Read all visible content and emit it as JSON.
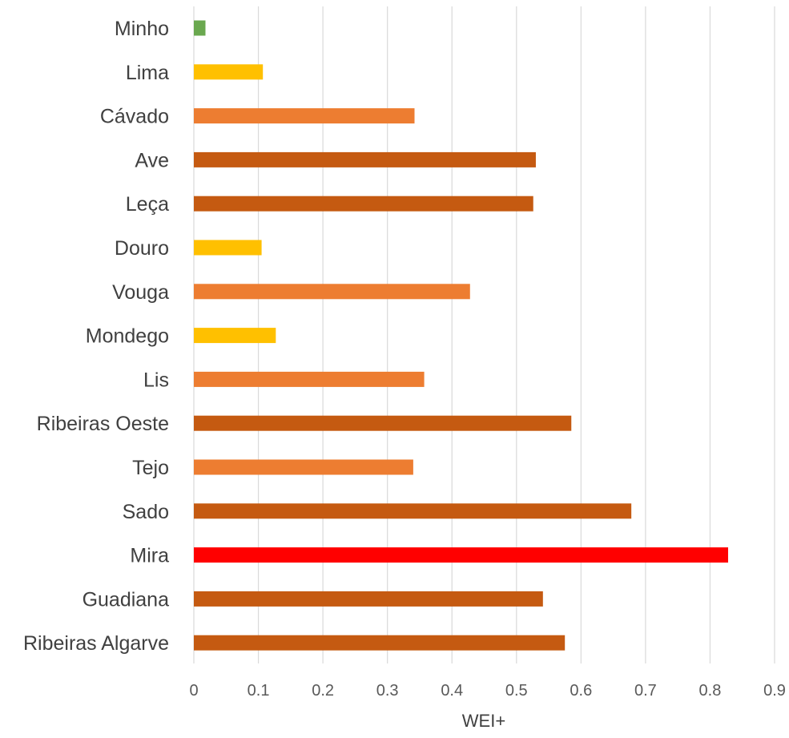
{
  "chart_data": {
    "type": "bar",
    "orientation": "horizontal",
    "title": "",
    "xlabel": "WEI+",
    "ylabel": "",
    "xlim": [
      0,
      0.9
    ],
    "x_ticks": [
      "0",
      "0.1",
      "0.2",
      "0.3",
      "0.4",
      "0.5",
      "0.6",
      "0.7",
      "0.8",
      "0.9"
    ],
    "grid": "vertical",
    "legend": "none",
    "categories": [
      "Minho",
      "Lima",
      "Cávado",
      "Ave",
      "Leça",
      "Douro",
      "Vouga",
      "Mondego",
      "Lis",
      "Ribeiras Oeste",
      "Tejo",
      "Sado",
      "Mira",
      "Guadiana",
      "Ribeiras Algarve"
    ],
    "values": [
      0.018,
      0.107,
      0.342,
      0.53,
      0.526,
      0.105,
      0.428,
      0.127,
      0.357,
      0.585,
      0.34,
      0.678,
      0.828,
      0.541,
      0.575
    ],
    "bar_colors": [
      "#6aa84f",
      "#ffc000",
      "#ed7d31",
      "#c55a11",
      "#c55a11",
      "#ffc000",
      "#ed7d31",
      "#ffc000",
      "#ed7d31",
      "#c55a11",
      "#ed7d31",
      "#c55a11",
      "#ff0000",
      "#c55a11",
      "#c55a11"
    ]
  },
  "colors": {
    "grid": "#d9d9d9",
    "category_text": "#404040",
    "tick_text": "#595959"
  }
}
